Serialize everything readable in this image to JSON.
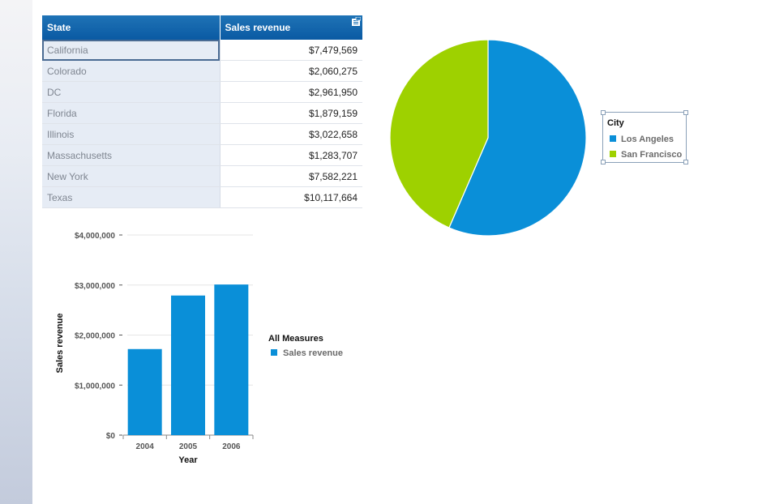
{
  "table": {
    "headers": [
      "State",
      "Sales revenue"
    ],
    "rows": [
      {
        "state": "California",
        "revenue": "$7,479,569"
      },
      {
        "state": "Colorado",
        "revenue": "$2,060,275"
      },
      {
        "state": "DC",
        "revenue": "$2,961,950"
      },
      {
        "state": "Florida",
        "revenue": "$1,879,159"
      },
      {
        "state": "Illinois",
        "revenue": "$3,022,658"
      },
      {
        "state": "Massachusetts",
        "revenue": "$1,283,707"
      },
      {
        "state": "New York",
        "revenue": "$7,582,221"
      },
      {
        "state": "Texas",
        "revenue": "$10,117,664"
      }
    ]
  },
  "pie_legend": {
    "title": "City",
    "items": [
      {
        "label": "Los Angeles",
        "color": "#0a8fd8"
      },
      {
        "label": "San Francisco",
        "color": "#9ed100"
      }
    ]
  },
  "bar_legend": {
    "title": "All Measures",
    "items": [
      {
        "label": "Sales revenue",
        "color": "#0a8fd8"
      }
    ]
  },
  "chart_data": [
    {
      "type": "pie",
      "slices": [
        {
          "label": "Los Angeles",
          "share": 0.565,
          "color": "#0a8fd8"
        },
        {
          "label": "San Francisco",
          "share": 0.435,
          "color": "#9ed100"
        }
      ],
      "legend_title": "City",
      "legend_position": "right"
    },
    {
      "type": "bar",
      "categories": [
        "2004",
        "2005",
        "2006"
      ],
      "series": [
        {
          "name": "Sales revenue",
          "values": [
            1720000,
            2790000,
            3010000
          ],
          "color": "#0a8fd8"
        }
      ],
      "xlabel": "Year",
      "ylabel": "Sales revenue",
      "ylim": [
        0,
        4000000
      ],
      "yticks": [
        0,
        1000000,
        2000000,
        3000000,
        4000000
      ],
      "ytick_labels": [
        "$0",
        "$1,000,000",
        "$2,000,000",
        "$3,000,000",
        "$4,000,000"
      ],
      "grid": true,
      "legend_title": "All Measures",
      "legend_position": "right"
    }
  ]
}
